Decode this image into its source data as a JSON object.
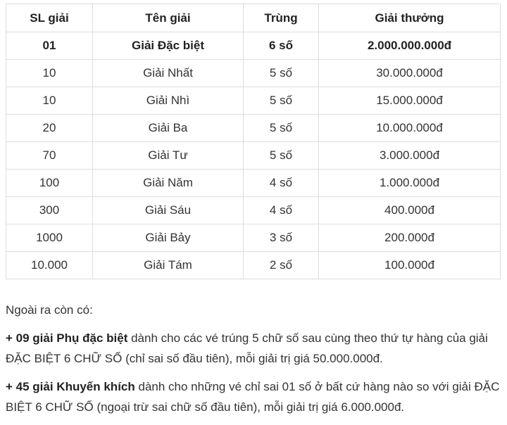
{
  "table": {
    "headers": [
      "SL giải",
      "Tên giải",
      "Trùng",
      "Giải thưởng"
    ],
    "rows": [
      [
        "01",
        "Giải Đặc biệt",
        "6 số",
        "2.000.000.000đ"
      ],
      [
        "10",
        "Giải Nhất",
        "5 số",
        "30.000.000đ"
      ],
      [
        "10",
        "Giải Nhì",
        "5 số",
        "15.000.000đ"
      ],
      [
        "20",
        "Giải Ba",
        "5 số",
        "10.000.000đ"
      ],
      [
        "70",
        "Giải Tư",
        "5 số",
        "3.000.000đ"
      ],
      [
        "100",
        "Giải Năm",
        "4 số",
        "1.000.000đ"
      ],
      [
        "300",
        "Giải Sáu",
        "4 số",
        "400.000đ"
      ],
      [
        "1000",
        "Giải Bảy",
        "3 số",
        "200.000đ"
      ],
      [
        "10.000",
        "Giải Tám",
        "2 số",
        "100.000đ"
      ]
    ]
  },
  "notes": {
    "intro": "Ngoài ra còn có:",
    "items": [
      {
        "bold": "+ 09 giải Phụ đặc biệt",
        "text": " dành cho các vé trúng 5 chữ số sau cùng theo thứ tự hàng của giải ĐẶC BIỆT 6 CHỮ SỐ (chỉ sai số đầu tiên), mỗi giải trị giá 50.000.000đ."
      },
      {
        "bold": "+ 45 giải Khuyến khích",
        "text": " dành cho những vé chỉ sai 01 số ở bất cứ hàng nào so với giải ĐẶC BIỆT 6 CHỮ SỐ (ngoại trừ sai chữ số đầu tiên), mỗi giải trị giá 6.000.000đ."
      }
    ]
  }
}
